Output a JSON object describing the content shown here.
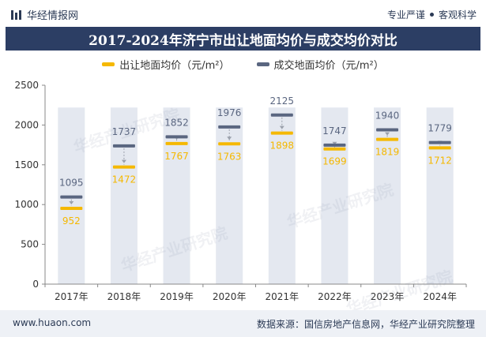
{
  "header": {
    "brand": "华经情报网",
    "tagline_left": "专业严谨",
    "tagline_right": "客观科学"
  },
  "title": "2017-2024年济宁市出让地面均价与成交均价对比",
  "watermark_text": "华经产业研究院",
  "footer": {
    "url": "www.huaon.com",
    "source": "数据来源：国信房地产信息网，华经产业研究院整理"
  },
  "colors": {
    "series_1": "#f5b800",
    "series_2": "#5a6680",
    "title_bg": "#2c3e64",
    "bar_bg": "#e4e8f0"
  },
  "chart_data": {
    "type": "line",
    "categories": [
      "2017年",
      "2018年",
      "2019年",
      "2020年",
      "2021年",
      "2022年",
      "2023年",
      "2024年"
    ],
    "series": [
      {
        "name": "出让地面均价（元/m²）",
        "values": [
          952,
          1472,
          1767,
          1763,
          1898,
          1699,
          1819,
          1712
        ]
      },
      {
        "name": "成交地面均价（元/m²）",
        "values": [
          1095,
          1737,
          1852,
          1976,
          2125,
          1747,
          1940,
          1779
        ]
      }
    ],
    "ylim": [
      0,
      2500
    ],
    "yticks": [
      0,
      500,
      1000,
      1500,
      2000,
      2500
    ],
    "background_band_value": 2220,
    "title": "2017-2024年济宁市出让地面均价与成交均价对比",
    "xlabel": "",
    "ylabel": ""
  }
}
